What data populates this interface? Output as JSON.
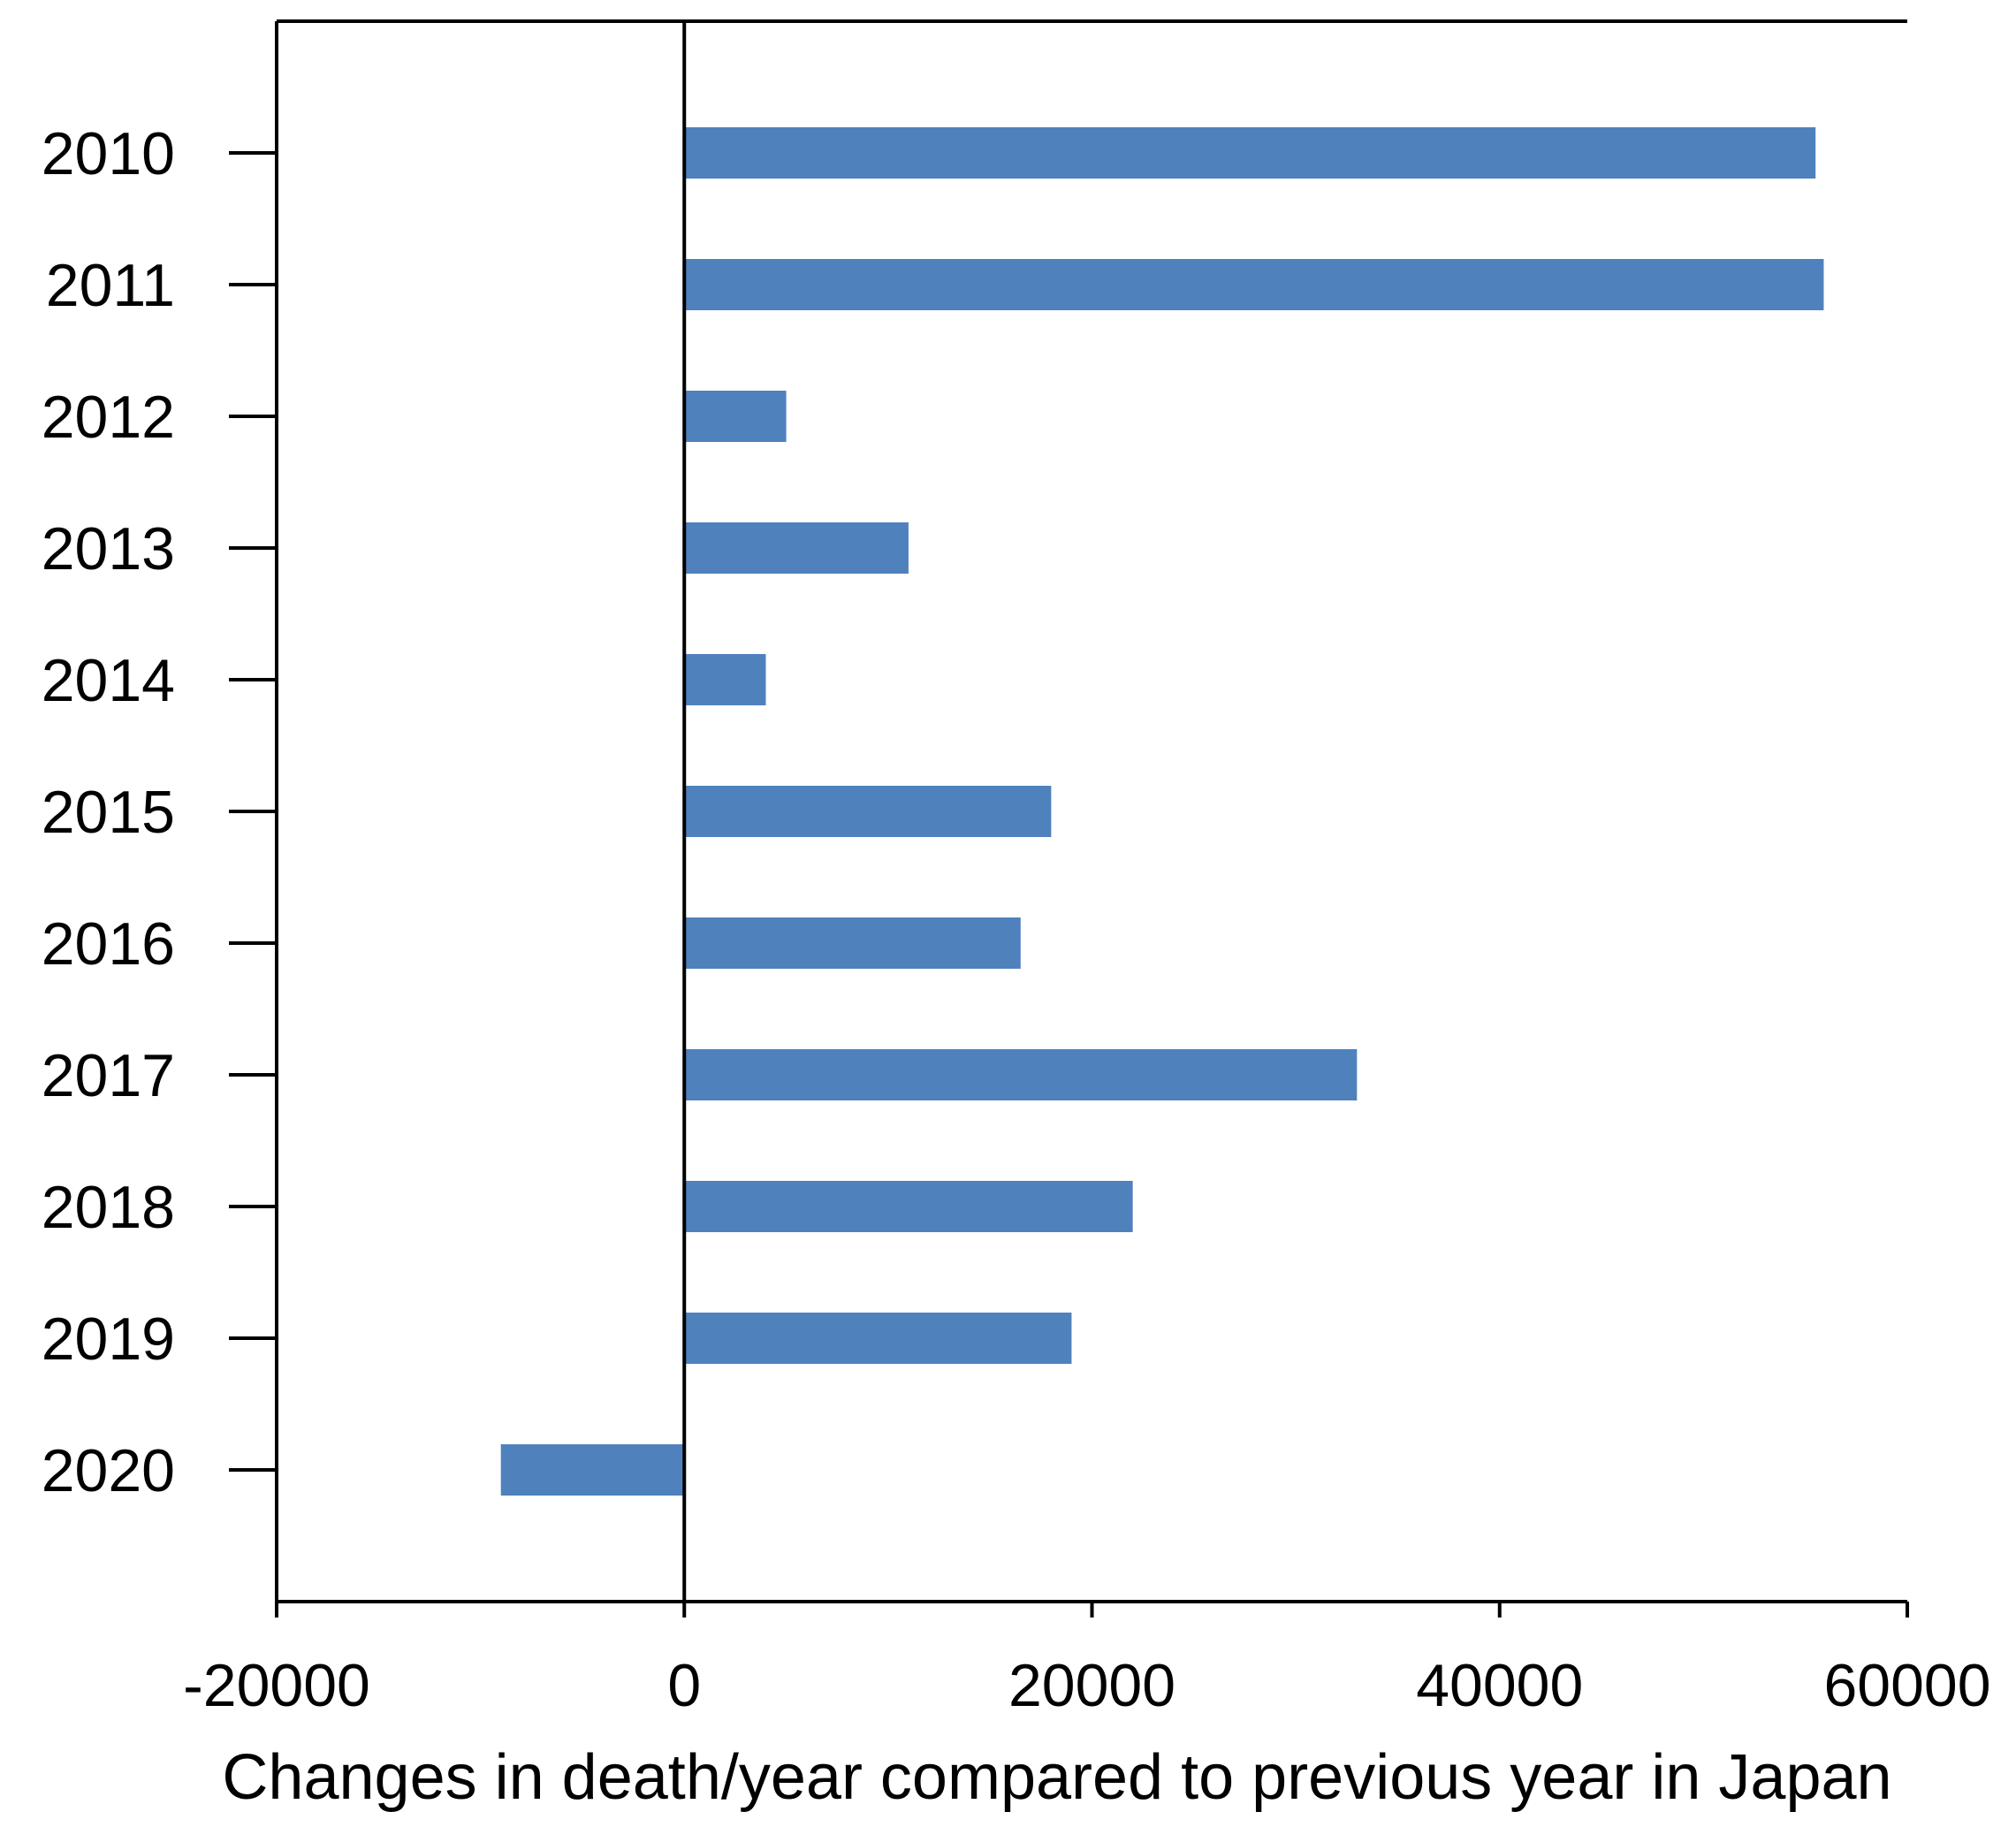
{
  "chart_data": {
    "type": "bar",
    "orientation": "horizontal",
    "title": "",
    "xlabel": "Changes in death/year compared to previous year in Japan",
    "ylabel": "",
    "categories": [
      "2010",
      "2011",
      "2012",
      "2013",
      "2014",
      "2015",
      "2016",
      "2017",
      "2018",
      "2019",
      "2020"
    ],
    "values": [
      55500,
      55900,
      5000,
      11000,
      4000,
      18000,
      16500,
      33000,
      22000,
      19000,
      -9000
    ],
    "xlim": [
      -20000,
      60000
    ],
    "x_ticks": [
      -20000,
      0,
      20000,
      40000,
      60000
    ],
    "x_tick_labels": [
      "-20000",
      "0",
      "20000",
      "40000",
      "60000"
    ],
    "grid": false,
    "legend": "none",
    "bar_color": "#4f81bd"
  }
}
